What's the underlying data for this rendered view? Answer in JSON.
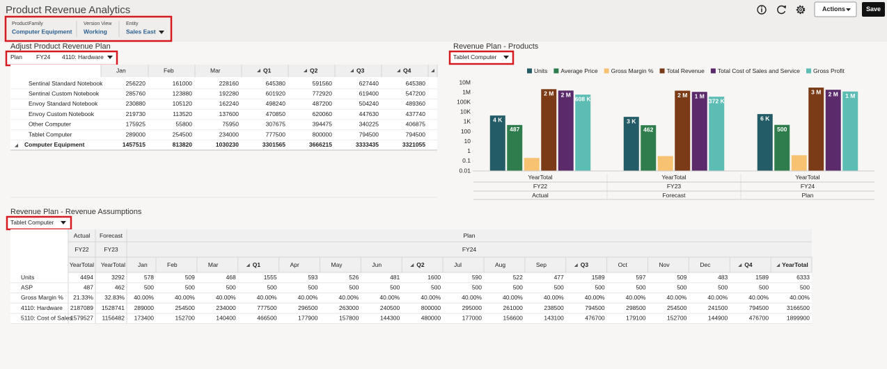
{
  "header": {
    "title": "Product Revenue Analytics",
    "actions": "Actions",
    "save": "Save"
  },
  "pov": [
    {
      "label": "ProductFamily",
      "value": "Computer Equipment"
    },
    {
      "label": "Version View",
      "value": "Working"
    },
    {
      "label": "Entity",
      "value": "Sales East"
    }
  ],
  "adjust_plan": {
    "title": "Adjust Product Revenue Plan",
    "pov": [
      "Plan",
      "FY24",
      "4110: Hardware"
    ],
    "columns": [
      "Jan",
      "Feb",
      "Mar",
      "Q1",
      "Q2",
      "Q3",
      "Q4"
    ],
    "rows": [
      {
        "label": "Sentinal Standard Notebook",
        "values": [
          256220,
          161000,
          228160,
          645380,
          591560,
          627440,
          645380
        ]
      },
      {
        "label": "Sentinal Custom Notebook",
        "values": [
          285760,
          123880,
          192280,
          601920,
          772920,
          619400,
          547200
        ]
      },
      {
        "label": "Envoy Standard Notebook",
        "values": [
          230880,
          105120,
          162240,
          498240,
          487200,
          504240,
          489360
        ]
      },
      {
        "label": "Envoy Custom Notebook",
        "values": [
          219730,
          113520,
          137600,
          470850,
          620060,
          447630,
          437740
        ]
      },
      {
        "label": "Other Computer",
        "values": [
          175925,
          55800,
          75950,
          307675,
          394475,
          340225,
          406875
        ]
      },
      {
        "label": "Tablet Computer",
        "values": [
          289000,
          254500,
          234000,
          777500,
          800000,
          794500,
          794500
        ]
      },
      {
        "label": "Computer Equipment",
        "values": [
          1457515,
          813820,
          1030230,
          3301565,
          3666215,
          3333435,
          3321055
        ],
        "total": true
      }
    ]
  },
  "chart_data": {
    "type": "bar",
    "title": "Revenue Plan - Products",
    "selector": "Tablet Computer",
    "categories": [
      "YearTotal",
      "YearTotal",
      "YearTotal"
    ],
    "category_years": [
      "FY22",
      "FY23",
      "FY24"
    ],
    "category_scenarios": [
      "Actual",
      "Forecast",
      "Plan"
    ],
    "log_scale": true,
    "grid": false,
    "ylim": [
      0.01,
      10000000
    ],
    "yticks": [
      {
        "value": 10000000,
        "label": "10M"
      },
      {
        "value": 1000000,
        "label": "1M"
      },
      {
        "value": 100000,
        "label": "100K"
      },
      {
        "value": 10000,
        "label": "10K"
      },
      {
        "value": 1000,
        "label": "1K"
      },
      100,
      10,
      1,
      0.1,
      0.01
    ],
    "series": [
      {
        "name": "Units",
        "color": "#235c66",
        "values": [
          4494,
          3292,
          6333
        ],
        "value_labels": [
          "4 K",
          "3 K",
          "6 K"
        ],
        "data_labels": true
      },
      {
        "name": "Average Price",
        "color": "#2f7d4c",
        "values": [
          487,
          462,
          500
        ],
        "data_labels": true
      },
      {
        "name": "Gross Margin %",
        "color": "#f7c272",
        "values": [
          0.2133,
          0.3283,
          0.4
        ],
        "data_labels": false
      },
      {
        "name": "Total Revenue",
        "color": "#7b3b17",
        "values": [
          2187089,
          1528741,
          3166500
        ],
        "value_labels": [
          "2 M",
          "2 M",
          "3 M"
        ],
        "data_labels": true
      },
      {
        "name": "Total Cost of Sales and Service",
        "color": "#5a2a6b",
        "values": [
          1579527,
          1156482,
          1899900
        ],
        "value_labels": [
          "2 M",
          "1 M",
          "2 M"
        ],
        "data_labels": true
      },
      {
        "name": "Gross Profit",
        "color": "#5dbdb4",
        "values": [
          607562,
          372259,
          1266600
        ],
        "value_labels": [
          "608 K",
          "372 K",
          "1 M"
        ],
        "data_labels": true
      }
    ]
  },
  "assumptions": {
    "title": "Revenue Plan - Revenue Assumptions",
    "selector": "Tablet Computer",
    "scenarios": [
      "Actual",
      "Forecast",
      "Plan"
    ],
    "years": [
      "FY22",
      "FY23",
      "FY24"
    ],
    "columns": [
      "YearTotal",
      "YearTotal",
      "Jan",
      "Feb",
      "Mar",
      "Q1",
      "Apr",
      "May",
      "Jun",
      "Q2",
      "Jul",
      "Aug",
      "Sep",
      "Q3",
      "Oct",
      "Nov",
      "Dec",
      "Q4",
      "YearTotal"
    ],
    "rows": [
      {
        "label": "Units",
        "values": [
          4494,
          3292,
          578,
          509,
          468,
          1555,
          593,
          526,
          481,
          1600,
          590,
          522,
          477,
          1589,
          597,
          509,
          483,
          1589,
          6333
        ]
      },
      {
        "label": "ASP",
        "values": [
          487,
          462,
          500,
          500,
          500,
          500,
          500,
          500,
          500,
          500,
          500,
          500,
          500,
          500,
          500,
          500,
          500,
          500,
          500
        ]
      },
      {
        "label": "Gross Margin %",
        "values": [
          "21.33%",
          "32.83%",
          "40.00%",
          "40.00%",
          "40.00%",
          "40.00%",
          "40.00%",
          "40.00%",
          "40.00%",
          "40.00%",
          "40.00%",
          "40.00%",
          "40.00%",
          "40.00%",
          "40.00%",
          "40.00%",
          "40.00%",
          "40.00%",
          "40.00%"
        ]
      },
      {
        "label": "4110: Hardware",
        "values": [
          2187089,
          1528741,
          289000,
          254500,
          234000,
          777500,
          296500,
          263000,
          240500,
          800000,
          295000,
          261000,
          238500,
          794500,
          298500,
          254500,
          241500,
          794500,
          3166500
        ]
      },
      {
        "label": "5110: Cost of Sales",
        "values": [
          1579527,
          1156482,
          173400,
          152700,
          140400,
          466500,
          177900,
          157800,
          144300,
          480000,
          177000,
          156600,
          143100,
          476700,
          179100,
          152700,
          144900,
          476700,
          1899900
        ]
      }
    ]
  }
}
